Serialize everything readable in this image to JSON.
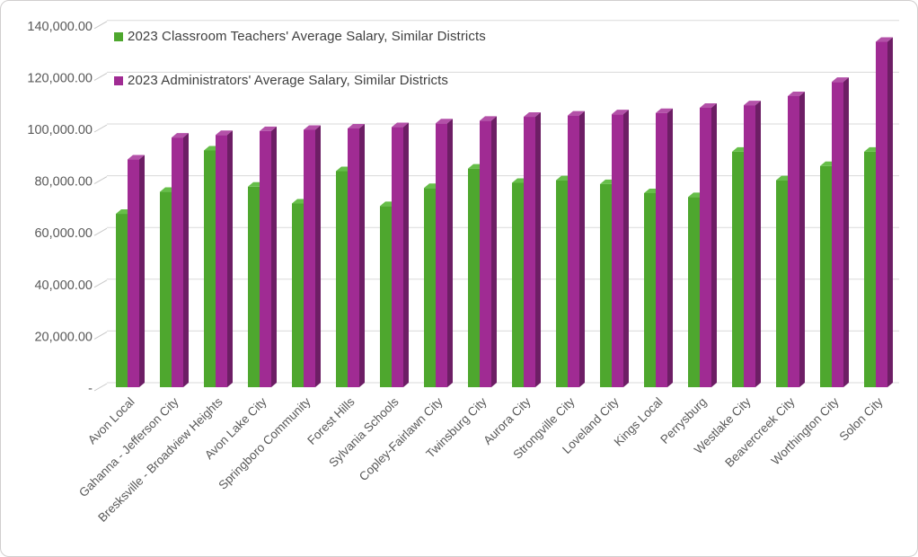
{
  "chart_data": {
    "type": "bar",
    "subtype": "3d-clustered-column",
    "title": "",
    "xlabel": "",
    "ylabel": "",
    "categories": [
      "Avon Local",
      "Gahanna - Jefferson City",
      "Bresksville - Broadview Heights",
      "Avon Lake City",
      "Springboro Community",
      "Forest Hills",
      "Sylvania Schools",
      "Copley-Fairlawn City",
      "Twinsburg City",
      "Aurora City",
      "Strongville City",
      "Loveland City",
      "Kings Local",
      "Perrysburg",
      "Westlake City",
      "Beavercreek City",
      "Worthington City",
      "Solon City"
    ],
    "series": [
      {
        "name": "2023 Classroom Teachers' Average Salary, Similar Districts",
        "color": "#4EA72E",
        "values": [
          67000,
          75500,
          91500,
          77500,
          71000,
          83500,
          70000,
          77000,
          84500,
          79000,
          80000,
          78500,
          75000,
          73500,
          91000,
          80000,
          85500,
          91000
        ]
      },
      {
        "name": "2023 Administrators' Average Salary, Similar Districts",
        "color": "#A02B93",
        "values": [
          88000,
          96500,
          97500,
          99000,
          99500,
          100000,
          100500,
          102000,
          103000,
          104500,
          105000,
          105500,
          106000,
          108000,
          109000,
          112500,
          118000,
          133500
        ]
      }
    ],
    "ylim": [
      0,
      140000
    ],
    "y_tick_step": 20000,
    "y_tick_labels": [
      "-",
      "20,000.00",
      "40,000.00",
      "60,000.00",
      "80,000.00",
      "100,000.00",
      "120,000.00",
      "140,000.00"
    ],
    "grid": true,
    "legend_position": "top-left-inside"
  },
  "colors": {
    "teacher_front": "#4EA72E",
    "teacher_top": "#66BE49",
    "admin_front": "#A02B93",
    "admin_top": "#B351A8",
    "admin_side": "#6D1E65",
    "gridline": "#DADADA",
    "tick": "#C8C8C8",
    "axis_label": "#595959",
    "legend_text": "#404040",
    "border": "#D0CECE"
  }
}
